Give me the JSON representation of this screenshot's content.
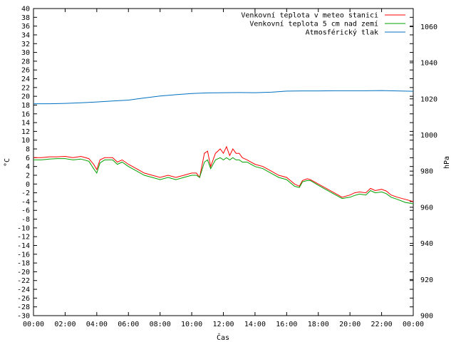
{
  "chart_data": {
    "type": "line",
    "xlabel": "Čas",
    "ylabel_left": "°C",
    "ylabel_right": "hPa",
    "x_ticks": [
      "00:00",
      "02:00",
      "04:00",
      "06:00",
      "08:00",
      "10:00",
      "12:00",
      "14:00",
      "16:00",
      "18:00",
      "20:00",
      "22:00",
      "00:00"
    ],
    "xlim": [
      0,
      24
    ],
    "ylim_left": [
      -30,
      40
    ],
    "ylim_right": [
      900,
      1070
    ],
    "y_ticks_left": [
      40,
      38,
      36,
      34,
      32,
      30,
      28,
      26,
      24,
      22,
      20,
      18,
      16,
      14,
      12,
      10,
      8,
      6,
      4,
      2,
      0,
      -2,
      -4,
      -6,
      -8,
      -10,
      -12,
      -14,
      -16,
      -18,
      -20,
      -22,
      -24,
      -26,
      -28,
      -30
    ],
    "y_ticks_right": [
      1060,
      1040,
      1020,
      1000,
      980,
      960,
      940,
      920,
      900
    ],
    "grid": false,
    "legend_position": "top-right",
    "series": [
      {
        "name": "Venkovní teplota v meteo stanici",
        "color": "#ff0000",
        "axis": "left",
        "x": [
          0,
          0.5,
          1,
          1.5,
          2,
          2.5,
          3,
          3.5,
          3.8,
          4,
          4.2,
          4.5,
          5,
          5.3,
          5.6,
          6,
          6.5,
          7,
          7.5,
          8,
          8.5,
          9,
          9.5,
          10,
          10.3,
          10.5,
          10.8,
          11,
          11.2,
          11.5,
          11.8,
          12,
          12.2,
          12.4,
          12.6,
          12.8,
          13,
          13.2,
          13.5,
          14,
          14.5,
          15,
          15.5,
          16,
          16.5,
          16.8,
          17,
          17.3,
          17.5,
          18,
          18.5,
          19,
          19.5,
          20,
          20.3,
          20.6,
          21,
          21.3,
          21.6,
          22,
          22.3,
          22.6,
          23,
          23.5,
          24
        ],
        "y": [
          6,
          6,
          6.2,
          6.2,
          6.3,
          6,
          6.3,
          5.8,
          4.5,
          3.3,
          5.5,
          6,
          6,
          5,
          5.5,
          4.5,
          3.5,
          2.5,
          2,
          1.5,
          2,
          1.5,
          2,
          2.5,
          2.5,
          1.5,
          7,
          7.5,
          4,
          7,
          8,
          7,
          8.5,
          6.5,
          8,
          7,
          7,
          6,
          5.5,
          4.5,
          4,
          3,
          2,
          1.5,
          0,
          -0.5,
          0.8,
          1.2,
          1,
          0,
          -1,
          -2,
          -3,
          -2.5,
          -2,
          -1.8,
          -2,
          -1,
          -1.5,
          -1.2,
          -1.6,
          -2.5,
          -3,
          -3.5,
          -4
        ]
      },
      {
        "name": "Venkovní teplota 5 cm nad zemí",
        "color": "#00a000",
        "axis": "left",
        "x": [
          0,
          0.5,
          1,
          1.5,
          2,
          2.5,
          3,
          3.5,
          3.8,
          4,
          4.2,
          4.5,
          5,
          5.3,
          5.6,
          6,
          6.5,
          7,
          7.5,
          8,
          8.5,
          9,
          9.5,
          10,
          10.3,
          10.5,
          10.8,
          11,
          11.2,
          11.5,
          11.8,
          12,
          12.2,
          12.4,
          12.6,
          12.8,
          13,
          13.2,
          13.5,
          14,
          14.5,
          15,
          15.5,
          16,
          16.5,
          16.8,
          17,
          17.3,
          17.5,
          18,
          18.5,
          19,
          19.5,
          20,
          20.3,
          20.6,
          21,
          21.3,
          21.6,
          22,
          22.3,
          22.6,
          23,
          23.5,
          24
        ],
        "y": [
          5.5,
          5.5,
          5.7,
          5.8,
          5.8,
          5.5,
          5.7,
          5.2,
          3.5,
          2.5,
          4.8,
          5.5,
          5.5,
          4.5,
          5,
          4,
          3,
          2,
          1.5,
          1,
          1.5,
          1,
          1.5,
          2,
          2,
          1.5,
          5,
          5.5,
          3.5,
          5.5,
          6,
          5.5,
          6,
          5.5,
          6,
          5.5,
          5.5,
          5,
          5,
          4,
          3.5,
          2.5,
          1.5,
          1,
          -0.5,
          -0.8,
          0.5,
          0.8,
          0.8,
          -0.3,
          -1.3,
          -2.3,
          -3.3,
          -3,
          -2.6,
          -2.3,
          -2.5,
          -1.5,
          -2,
          -1.8,
          -2.2,
          -3,
          -3.5,
          -4.2,
          -4.5
        ]
      },
      {
        "name": "Atmosférický tlak",
        "color": "#0070c0",
        "axis": "right",
        "x": [
          0,
          1,
          2,
          3,
          4,
          5,
          6,
          7,
          8,
          9,
          10,
          11,
          12,
          13,
          14,
          15,
          16,
          17,
          18,
          19,
          20,
          21,
          22,
          23,
          24
        ],
        "y": [
          1017.3,
          1017.3,
          1017.5,
          1017.8,
          1018.3,
          1018.8,
          1019.3,
          1020.5,
          1021.6,
          1022.3,
          1023,
          1023.3,
          1023.4,
          1023.5,
          1023.4,
          1023.7,
          1024.3,
          1024.4,
          1024.4,
          1024.5,
          1024.5,
          1024.5,
          1024.6,
          1024.4,
          1024.2
        ]
      }
    ]
  }
}
